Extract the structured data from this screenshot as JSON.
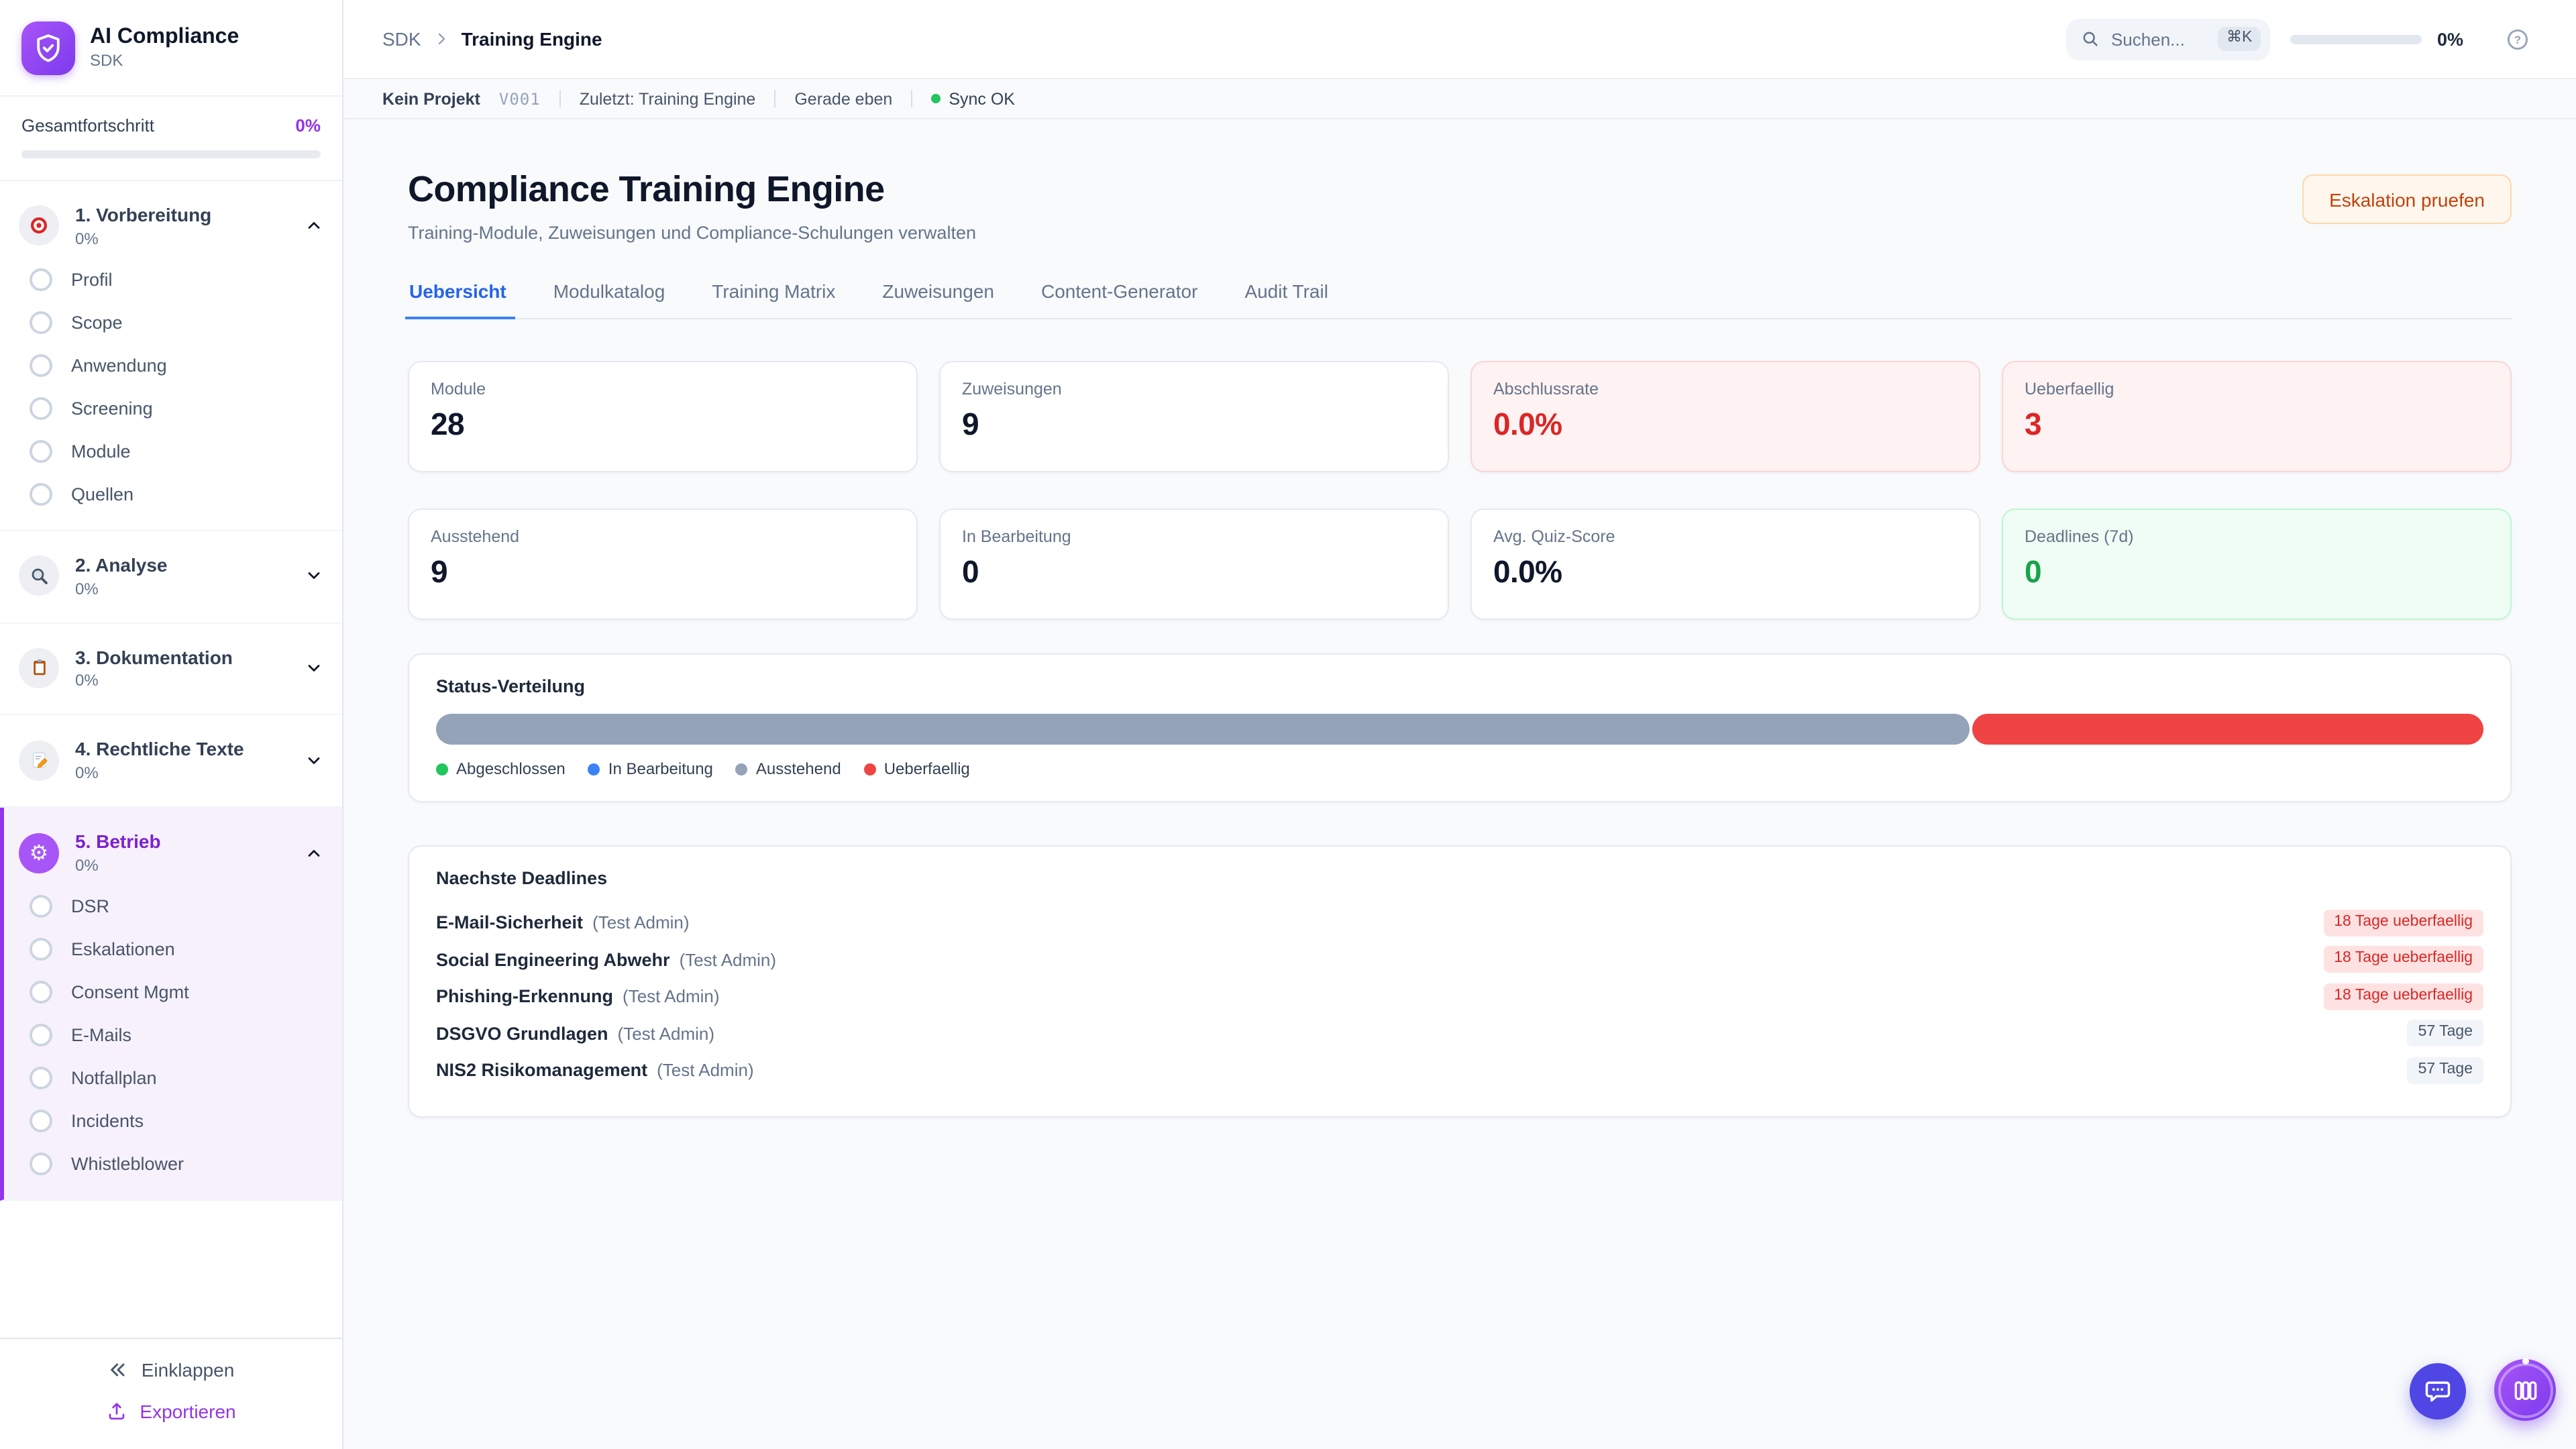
{
  "brand": {
    "name": "AI Compliance",
    "subtitle": "SDK"
  },
  "sidebar": {
    "progress_label": "Gesamtfortschritt",
    "progress_value": "0%",
    "progress_percent": 0,
    "sections": [
      {
        "title": "1. Vorbereitung",
        "percent": "0%",
        "icon": "target-icon",
        "state": "expanded",
        "items": [
          "Profil",
          "Scope",
          "Anwendung",
          "Screening",
          "Module",
          "Quellen"
        ]
      },
      {
        "title": "2. Analyse",
        "percent": "0%",
        "icon": "magnifier-icon",
        "state": "collapsed",
        "items": []
      },
      {
        "title": "3. Dokumentation",
        "percent": "0%",
        "icon": "clipboard-icon",
        "state": "collapsed",
        "items": []
      },
      {
        "title": "4. Rechtliche Texte",
        "percent": "0%",
        "icon": "memo-icon",
        "state": "collapsed",
        "items": []
      },
      {
        "title": "5. Betrieb",
        "percent": "0%",
        "icon": "gear-icon",
        "state": "expanded",
        "active": true,
        "items": [
          "DSR",
          "Eskalationen",
          "Consent Mgmt",
          "E-Mails",
          "Notfallplan",
          "Incidents",
          "Whistleblower"
        ]
      }
    ],
    "collapse_label": "Einklappen",
    "export_label": "Exportieren"
  },
  "topbar": {
    "breadcrumb_root": "SDK",
    "breadcrumb_current": "Training Engine",
    "search_placeholder": "Suchen...",
    "search_shortcut": "⌘K",
    "progress_value": "0%",
    "progress_percent": 0
  },
  "statusbar": {
    "project": "Kein Projekt",
    "version": "V001",
    "last": "Zuletzt: Training Engine",
    "time": "Gerade eben",
    "sync": "Sync OK"
  },
  "page": {
    "title": "Compliance Training Engine",
    "subtitle": "Training-Module, Zuweisungen und Compliance-Schulungen verwalten",
    "action_label": "Eskalation pruefen"
  },
  "tabs": [
    {
      "label": "Uebersicht",
      "active": true
    },
    {
      "label": "Modulkatalog",
      "active": false
    },
    {
      "label": "Training Matrix",
      "active": false
    },
    {
      "label": "Zuweisungen",
      "active": false
    },
    {
      "label": "Content-Generator",
      "active": false
    },
    {
      "label": "Audit Trail",
      "active": false
    }
  ],
  "stats": [
    {
      "label": "Module",
      "value": "28",
      "variant": "default"
    },
    {
      "label": "Zuweisungen",
      "value": "9",
      "variant": "default"
    },
    {
      "label": "Abschlussrate",
      "value": "0.0%",
      "variant": "danger"
    },
    {
      "label": "Ueberfaellig",
      "value": "3",
      "variant": "danger"
    },
    {
      "label": "Ausstehend",
      "value": "9",
      "variant": "default"
    },
    {
      "label": "In Bearbeitung",
      "value": "0",
      "variant": "default"
    },
    {
      "label": "Avg. Quiz-Score",
      "value": "0.0%",
      "variant": "default"
    },
    {
      "label": "Deadlines (7d)",
      "value": "0",
      "variant": "success"
    }
  ],
  "status_chart": {
    "title": "Status-Verteilung",
    "chart_data": {
      "type": "bar",
      "subtype": "stacked-horizontal",
      "total": 12,
      "segments": [
        {
          "label": "Abgeschlossen",
          "value": 0,
          "color": "#22c55e"
        },
        {
          "label": "In Bearbeitung",
          "value": 0,
          "color": "#3b82f6"
        },
        {
          "label": "Ausstehend",
          "value": 9,
          "color": "#94a3b8"
        },
        {
          "label": "Ueberfaellig",
          "value": 3,
          "color": "#ef4444"
        }
      ],
      "legend_position": "bottom"
    }
  },
  "deadlines": {
    "title": "Naechste Deadlines",
    "rows": [
      {
        "name": "E-Mail-Sicherheit",
        "assignee": "(Test Admin)",
        "badge": "18 Tage ueberfaellig",
        "overdue": true
      },
      {
        "name": "Social Engineering Abwehr",
        "assignee": "(Test Admin)",
        "badge": "18 Tage ueberfaellig",
        "overdue": true
      },
      {
        "name": "Phishing-Erkennung",
        "assignee": "(Test Admin)",
        "badge": "18 Tage ueberfaellig",
        "overdue": true
      },
      {
        "name": "DSGVO Grundlagen",
        "assignee": "(Test Admin)",
        "badge": "57 Tage",
        "overdue": false
      },
      {
        "name": "NIS2 Risikomanagement",
        "assignee": "(Test Admin)",
        "badge": "57 Tage",
        "overdue": false
      }
    ]
  },
  "colors": {
    "brand_purple": "#9333ea",
    "active_tab_blue": "#2563eb",
    "danger_red": "#dc2626",
    "success_green": "#16a34a",
    "warn_orange": "#c2410c",
    "sync_green": "#22c55e",
    "bar_gray": "#94a3b8",
    "bar_red": "#ef4444"
  }
}
